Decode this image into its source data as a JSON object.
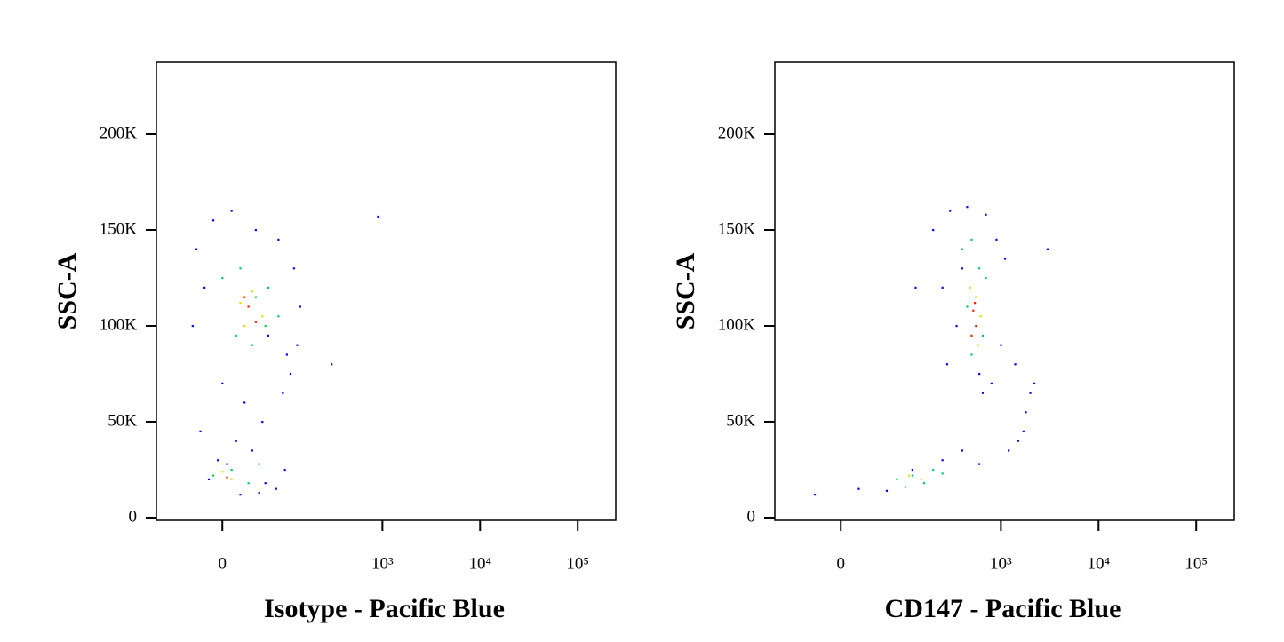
{
  "chart_data": [
    {
      "type": "scatter",
      "xlabel": "Isotype - Pacific Blue",
      "ylabel": "SSC-A",
      "xscale": "biexponential",
      "xlim": [
        -104,
        245000
      ],
      "ylim": [
        -1400,
        237500
      ],
      "xticks": [
        0,
        {
          "value": 1000,
          "label": "10³"
        },
        {
          "value": 10000,
          "label": "10⁴"
        },
        {
          "value": 100000,
          "label": "10⁵"
        }
      ],
      "yticks": [
        0,
        {
          "value": 50000,
          "label": "50K"
        },
        {
          "value": 100000,
          "label": "100K"
        },
        {
          "value": 150000,
          "label": "150K"
        },
        {
          "value": 200000,
          "label": "200K"
        }
      ],
      "series": [
        {
          "color": "#0000ff",
          "x": [
            -30,
            -10,
            10,
            40,
            80,
            120,
            -20,
            60,
            100,
            140,
            -35,
            0,
            25,
            90,
            130,
            -25,
            15,
            50,
            110,
            -5,
            35,
            75,
            20,
            -15,
            55,
            95,
            5,
            45,
            300,
            900
          ],
          "y": [
            140000,
            155000,
            160000,
            150000,
            145000,
            130000,
            120000,
            95000,
            85000,
            110000,
            100000,
            70000,
            60000,
            65000,
            90000,
            45000,
            40000,
            50000,
            75000,
            30000,
            35000,
            15000,
            12000,
            20000,
            18000,
            25000,
            28000,
            13000,
            80000,
            157000
          ]
        },
        {
          "color": "#00cc66",
          "x": [
            0,
            20,
            40,
            60,
            80,
            15,
            35,
            55,
            -10,
            10,
            30,
            45
          ],
          "y": [
            125000,
            130000,
            115000,
            120000,
            105000,
            95000,
            90000,
            100000,
            22000,
            25000,
            18000,
            28000
          ]
        },
        {
          "color": "#e0e000",
          "x": [
            20,
            35,
            50,
            25,
            10,
            0
          ],
          "y": [
            112000,
            118000,
            105000,
            100000,
            20000,
            24000
          ]
        },
        {
          "color": "#ff2000",
          "x": [
            30,
            40,
            25,
            5
          ],
          "y": [
            110000,
            102000,
            115000,
            21000
          ]
        }
      ]
    },
    {
      "type": "scatter",
      "xlabel": "CD147 - Pacific Blue",
      "ylabel": "SSC-A",
      "xscale": "biexponential",
      "xlim": [
        -104,
        245000
      ],
      "ylim": [
        -1400,
        237500
      ],
      "xticks": [
        0,
        {
          "value": 1000,
          "label": "10³"
        },
        {
          "value": 10000,
          "label": "10⁴"
        },
        {
          "value": 100000,
          "label": "10⁵"
        }
      ],
      "yticks": [
        0,
        {
          "value": 50000,
          "label": "50K"
        },
        {
          "value": 100000,
          "label": "100K"
        },
        {
          "value": 150000,
          "label": "150K"
        },
        {
          "value": 200000,
          "label": "200K"
        }
      ],
      "series": [
        {
          "color": "#0000ff",
          "x": [
            200,
            300,
            450,
            700,
            900,
            1100,
            250,
            350,
            600,
            1000,
            280,
            800,
            400,
            650,
            -30,
            20,
            60,
            120,
            250,
            400,
            600,
            1500,
            1800,
            2200,
            1400,
            2000,
            1700,
            1200,
            3000,
            130
          ],
          "y": [
            150000,
            160000,
            162000,
            158000,
            145000,
            135000,
            120000,
            100000,
            75000,
            90000,
            80000,
            70000,
            130000,
            65000,
            12000,
            15000,
            14000,
            25000,
            30000,
            35000,
            28000,
            40000,
            55000,
            70000,
            80000,
            65000,
            45000,
            35000,
            140000,
            120000
          ]
        },
        {
          "color": "#00cc66",
          "x": [
            400,
            500,
            600,
            700,
            450,
            550,
            650,
            500,
            80,
            120,
            160,
            200,
            250,
            100
          ],
          "y": [
            140000,
            145000,
            130000,
            125000,
            110000,
            100000,
            95000,
            85000,
            20000,
            22000,
            18000,
            25000,
            23000,
            16000
          ]
        },
        {
          "color": "#e0e000",
          "x": [
            480,
            550,
            620,
            500,
            580,
            150,
            110
          ],
          "y": [
            120000,
            115000,
            105000,
            95000,
            90000,
            20000,
            22000
          ]
        },
        {
          "color": "#ff2000",
          "x": [
            520,
            560,
            500,
            540
          ],
          "y": [
            108000,
            100000,
            95000,
            112000
          ]
        }
      ]
    }
  ]
}
